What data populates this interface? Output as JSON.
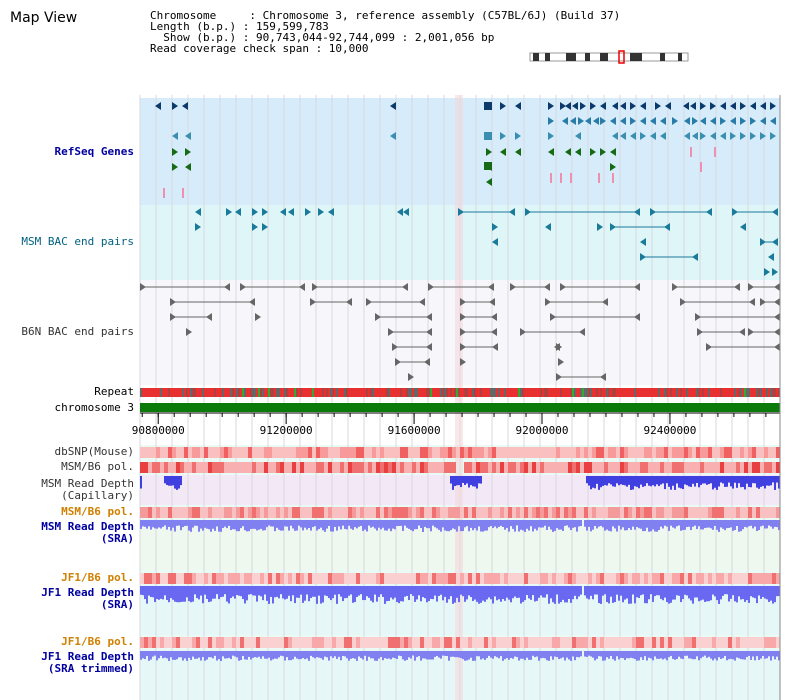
{
  "title": "Map View",
  "info": {
    "line1": "Chromosome     : Chromosome 3, reference assembly (C57BL/6J) (Build 37)",
    "line2": "Length (b.p.) : 159,599,783",
    "line3": "  Show (b.p.) : 90,743,044-92,744,099 : 2,001,056 bp",
    "line4": "Read coverage check span : 10,000"
  },
  "tracks": {
    "refseq": "RefSeq Genes",
    "msm_bac": "MSM BAC end pairs",
    "b6n_bac": "B6N BAC end pairs",
    "repeat": "Repeat",
    "chromosome": "chromosome 3",
    "dbsnp": "dbSNP(Mouse)",
    "msm_b6_pol_1": "MSM/B6 pol.",
    "msm_depth_cap": "MSM Read Depth\n(Capillary)",
    "msm_b6_pol_2": "MSM/B6 pol.",
    "msm_depth_sra": "MSM Read Depth\n(SRA)",
    "jf1_b6_pol_1": "JF1/B6 pol.",
    "jf1_depth_sra": "JF1 Read Depth\n(SRA)",
    "jf1_b6_pol_2": "JF1/B6 pol.",
    "jf1_depth_trim": "JF1 Read Depth\n(SRA trimmed)"
  },
  "axis": {
    "ticks": [
      "90800000",
      "91200000",
      "91600000",
      "92000000",
      "92400000"
    ],
    "tick_values": [
      90800000,
      91200000,
      91600000,
      92000000,
      92400000
    ],
    "start": 90743044,
    "end": 92744099
  },
  "colors": {
    "refseq_bg": "#d6ecfa",
    "msm_bg": "#dff6f8",
    "chrom": "#0a7a0a",
    "repeat": "#e83030"
  }
}
